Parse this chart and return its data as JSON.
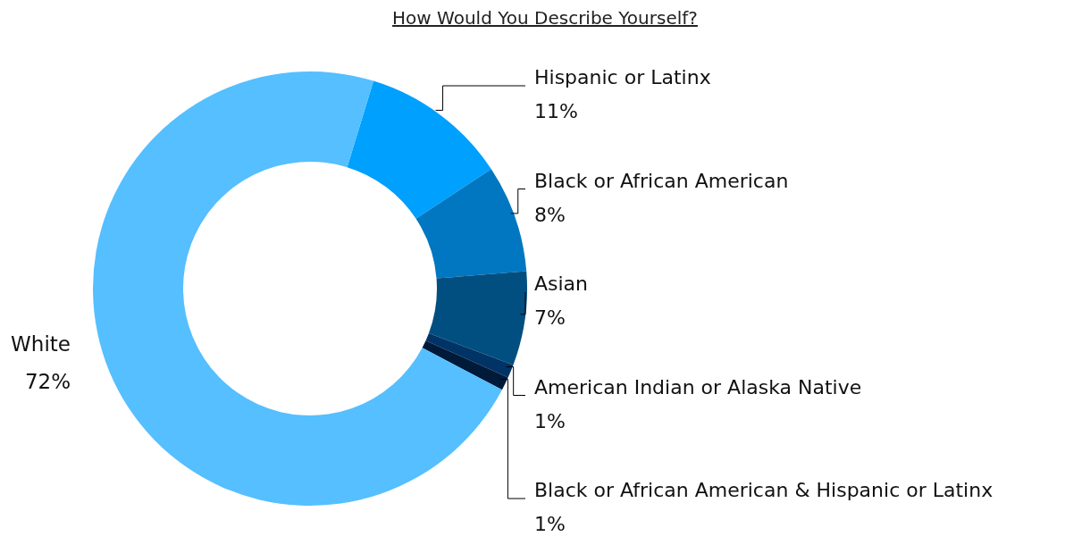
{
  "chart_data": {
    "type": "donut",
    "title": "How Would You Describe Yourself?",
    "categories": [
      "Hispanic or Latinx",
      "Black or African American",
      "Asian",
      "American Indian or Alaska Native",
      "Black or African American & Hispanic or Latinx",
      "White"
    ],
    "values": [
      11,
      8,
      7,
      1,
      1,
      72
    ],
    "colors": [
      "#00a0ff",
      "#0077c0",
      "#004f80",
      "#003366",
      "#001a3a",
      "#55bfff"
    ],
    "value_labels": [
      "11%",
      "8%",
      "7%",
      "1%",
      "1%",
      "72%"
    ]
  }
}
